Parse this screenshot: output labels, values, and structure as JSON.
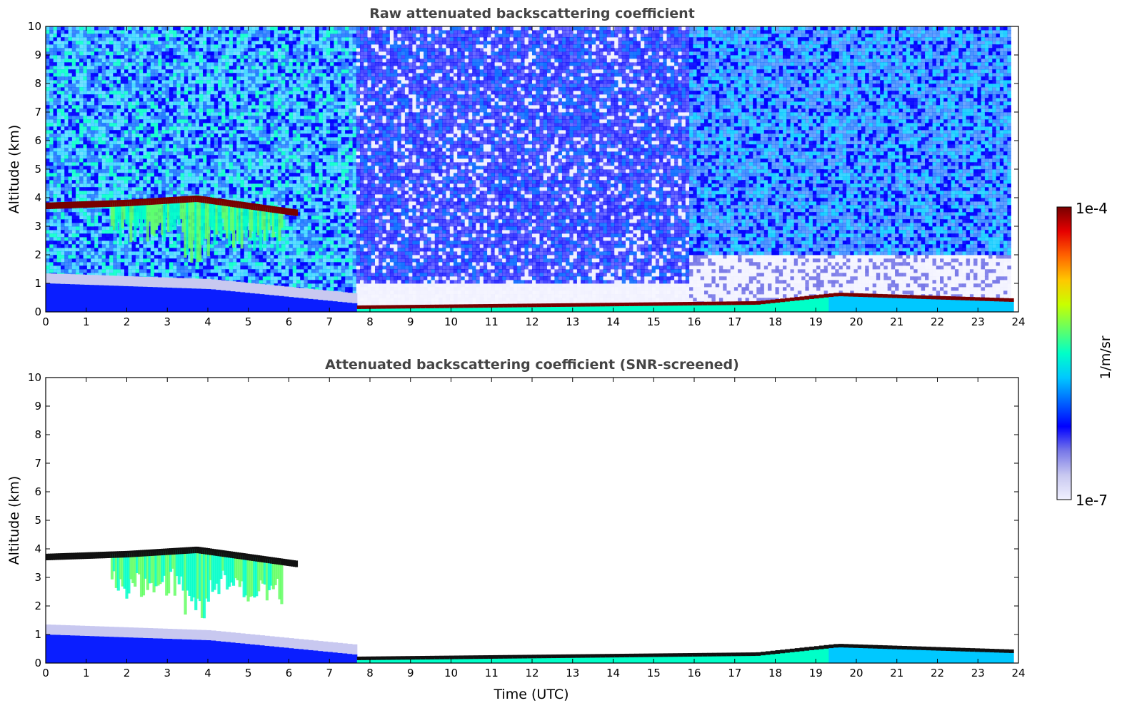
{
  "colors": {
    "jet_stops": [
      "#f0f0ff",
      "#c8c8f0",
      "#7878e8",
      "#0000ff",
      "#0064ff",
      "#00c8ff",
      "#00ffc8",
      "#64ff64",
      "#c8ff00",
      "#ffc800",
      "#ff6400",
      "#e60000",
      "#780000"
    ],
    "low_noise": "#0a1eff",
    "frame": "#000000"
  },
  "chart_data": [
    {
      "type": "heatmap",
      "title": "Raw attenuated backscattering coefficient",
      "ylabel": "Altitude (km)",
      "xlabel": "",
      "xlim": [
        0,
        24
      ],
      "ylim": [
        0,
        10
      ],
      "xticks": [
        "0",
        "1",
        "2",
        "3",
        "4",
        "5",
        "6",
        "7",
        "8",
        "9",
        "10",
        "11",
        "12",
        "13",
        "14",
        "15",
        "16",
        "17",
        "18",
        "19",
        "20",
        "21",
        "22",
        "23",
        "24"
      ],
      "yticks": [
        "0",
        "1",
        "2",
        "3",
        "4",
        "5",
        "6",
        "7",
        "8",
        "9",
        "10"
      ],
      "cloud_layer_top_km": [
        [
          0.0,
          3.75
        ],
        [
          2.0,
          3.85
        ],
        [
          3.7,
          4.0
        ],
        [
          6.2,
          3.5
        ]
      ],
      "boundary_layer_top_km": [
        [
          0.0,
          1.0
        ],
        [
          4.0,
          0.8
        ],
        [
          7.6,
          0.3
        ],
        [
          7.6,
          0.15
        ],
        [
          17.5,
          0.3
        ],
        [
          19.5,
          0.6
        ],
        [
          23.8,
          0.4
        ]
      ],
      "data_end_utc": 23.8
    },
    {
      "type": "heatmap",
      "title": "Attenuated backscattering coefficient (SNR-screened)",
      "ylabel": "Altitude (km)",
      "xlabel": "Time (UTC)",
      "xlim": [
        0,
        24
      ],
      "ylim": [
        0,
        10
      ],
      "xticks": [
        "0",
        "1",
        "2",
        "3",
        "4",
        "5",
        "6",
        "7",
        "8",
        "9",
        "10",
        "11",
        "12",
        "13",
        "14",
        "15",
        "16",
        "17",
        "18",
        "19",
        "20",
        "21",
        "22",
        "23",
        "24"
      ],
      "yticks": [
        "0",
        "1",
        "2",
        "3",
        "4",
        "5",
        "6",
        "7",
        "8",
        "9",
        "10"
      ],
      "cloud_layer_top_km": [
        [
          0.0,
          3.75
        ],
        [
          2.0,
          3.85
        ],
        [
          3.7,
          4.0
        ],
        [
          6.2,
          3.5
        ]
      ],
      "boundary_layer_top_km": [
        [
          0.0,
          1.0
        ],
        [
          4.0,
          0.8
        ],
        [
          7.6,
          0.3
        ],
        [
          7.6,
          0.15
        ],
        [
          17.5,
          0.3
        ],
        [
          19.5,
          0.6
        ],
        [
          23.8,
          0.4
        ]
      ],
      "data_end_utc": 23.8
    }
  ],
  "colorbar": {
    "max_label": "1e-4",
    "min_label": "1e-7",
    "unit": "1/m/sr"
  }
}
